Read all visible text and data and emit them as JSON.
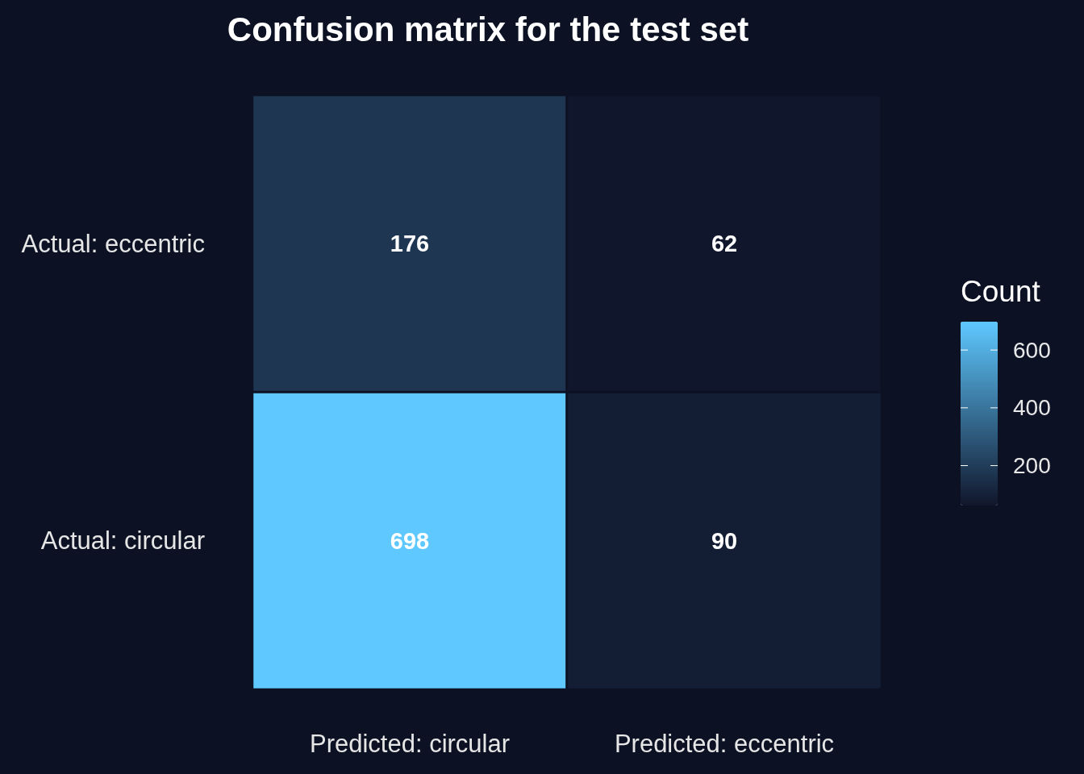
{
  "chart_data": {
    "type": "heatmap",
    "title": "Confusion matrix for the test set",
    "categories": [
      "Predicted: circular",
      "Predicted: eccentric"
    ],
    "y_categories": [
      "Actual: eccentric",
      "Actual: circular"
    ],
    "cells": [
      [
        176,
        62
      ],
      [
        698,
        90
      ]
    ],
    "clabel": "Count",
    "clim": [
      62,
      698
    ],
    "cticks": [
      200,
      400,
      600
    ],
    "data_labels": true
  }
}
